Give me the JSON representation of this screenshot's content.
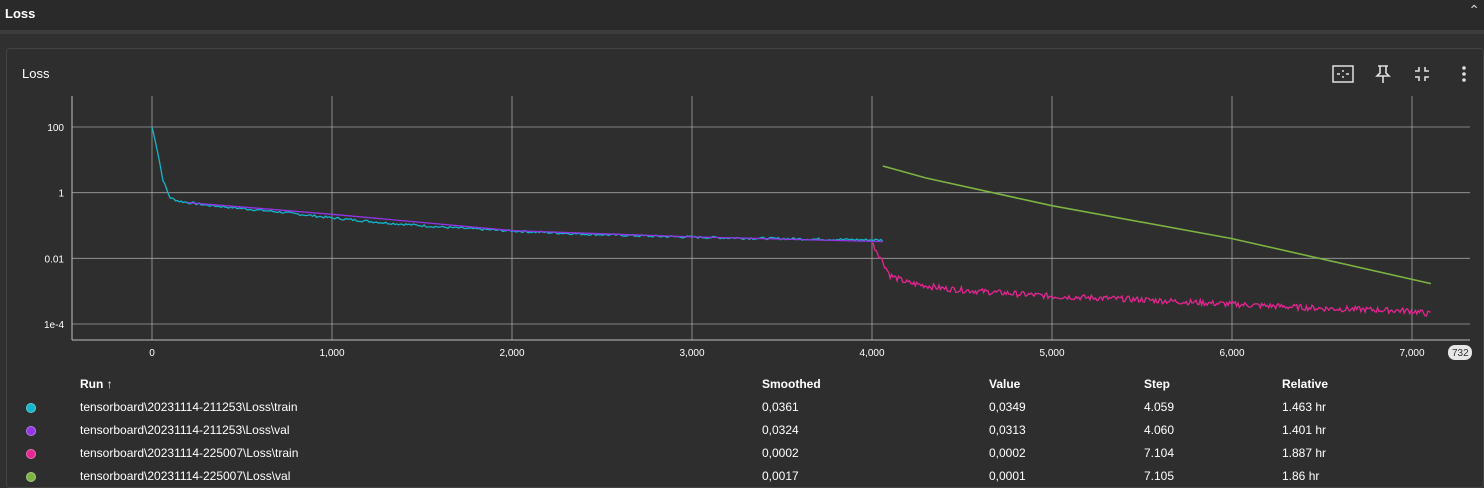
{
  "section": {
    "title": "Loss"
  },
  "card": {
    "title": "Loss"
  },
  "toolbar": {
    "icons": [
      "fit-domain-icon",
      "pin-icon",
      "fullscreen-exit-icon",
      "more-vert-icon"
    ]
  },
  "chart_data": {
    "type": "line",
    "y_scale": "log",
    "xlim": [
      -450,
      7320
    ],
    "ylim": [
      5e-05,
      300
    ],
    "x_ticks": [
      0,
      1000,
      2000,
      3000,
      4000,
      5000,
      6000,
      7000
    ],
    "x_tick_labels": [
      "0",
      "1,000",
      "2,000",
      "3,000",
      "4,000",
      "5,000",
      "6,000",
      "7,000"
    ],
    "y_ticks": [
      100,
      1,
      0.01,
      0.0001
    ],
    "y_tick_labels": [
      "100",
      "1",
      "0.01",
      "1e-4"
    ],
    "x_extent_label": "732",
    "grid": true,
    "series": [
      {
        "name": "tensorboard\\20231114-211253\\Loss\\train",
        "color": "#12b5cb",
        "x": [
          0,
          20,
          40,
          60,
          100,
          150,
          200,
          300,
          500,
          700,
          1000,
          1300,
          1600,
          2000,
          2400,
          2800,
          3200,
          3600,
          4059
        ],
        "y": [
          100,
          35,
          10,
          2.5,
          0.7,
          0.55,
          0.5,
          0.42,
          0.33,
          0.26,
          0.17,
          0.12,
          0.09,
          0.068,
          0.055,
          0.047,
          0.042,
          0.039,
          0.0361
        ]
      },
      {
        "name": "tensorboard\\20231114-211253\\Loss\\val",
        "color": "#9334e6",
        "x": [
          200,
          1000,
          2000,
          3000,
          4060
        ],
        "y": [
          0.5,
          0.22,
          0.07,
          0.045,
          0.0324
        ]
      },
      {
        "name": "tensorboard\\20231114-225007\\Loss\\train",
        "color": "#e52592",
        "x": [
          4000,
          4050,
          4100,
          4200,
          4400,
          4700,
          5000,
          5500,
          6000,
          6500,
          7000,
          7104
        ],
        "y": [
          0.03,
          0.01,
          0.003,
          0.0018,
          0.0012,
          0.0009,
          0.0007,
          0.00055,
          0.0004,
          0.0003,
          0.00025,
          0.0002
        ]
      },
      {
        "name": "tensorboard\\20231114-225007\\Loss\\val",
        "color": "#7cb342",
        "x": [
          4060,
          4300,
          5000,
          6000,
          7105
        ],
        "y": [
          6.5,
          2.8,
          0.4,
          0.04,
          0.0017
        ]
      }
    ]
  },
  "table": {
    "headers": {
      "run": "Run ↑",
      "smoothed": "Smoothed",
      "value": "Value",
      "step": "Step",
      "relative": "Relative"
    },
    "rows": [
      {
        "color": "#12b5cb",
        "run": "tensorboard\\20231114-211253\\Loss\\train",
        "smoothed": "0,0361",
        "value": "0,0349",
        "step": "4.059",
        "relative": "1.463 hr"
      },
      {
        "color": "#9334e6",
        "run": "tensorboard\\20231114-211253\\Loss\\val",
        "smoothed": "0,0324",
        "value": "0,0313",
        "step": "4.060",
        "relative": "1.401 hr"
      },
      {
        "color": "#e52592",
        "run": "tensorboard\\20231114-225007\\Loss\\train",
        "smoothed": "0,0002",
        "value": "0,0002",
        "step": "7.104",
        "relative": "1.887 hr"
      },
      {
        "color": "#7cb342",
        "run": "tensorboard\\20231114-225007\\Loss\\val",
        "smoothed": "0,0017",
        "value": "0,0001",
        "step": "7.105",
        "relative": "1.86 hr"
      }
    ]
  }
}
